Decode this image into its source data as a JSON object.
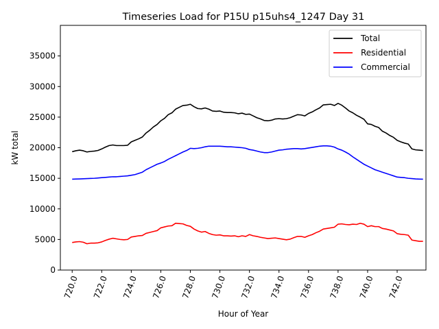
{
  "chart_data": {
    "type": "line",
    "title": "Timeseries Load for P15U p15uhs4_1247  Day 31",
    "xlabel": "Hour of Year",
    "ylabel": "kW total",
    "xlim": [
      719.2,
      743.95
    ],
    "ylim": [
      0,
      40000
    ],
    "x_ticks": [
      720,
      722,
      724,
      726,
      728,
      730,
      732,
      734,
      736,
      738,
      740,
      742
    ],
    "x_tick_labels": [
      "720.0",
      "722.0",
      "724.0",
      "726.0",
      "728.0",
      "730.0",
      "732.0",
      "734.0",
      "736.0",
      "738.0",
      "740.0",
      "742.0"
    ],
    "y_ticks": [
      0,
      5000,
      10000,
      15000,
      20000,
      25000,
      30000,
      35000
    ],
    "y_tick_labels": [
      "0",
      "5000",
      "10000",
      "15000",
      "20000",
      "25000",
      "30000",
      "35000"
    ],
    "legend_position": "top-right",
    "x": [
      720.0,
      720.25,
      720.5,
      720.75,
      721.0,
      721.25,
      721.5,
      721.75,
      722.0,
      722.25,
      722.5,
      722.75,
      723.0,
      723.25,
      723.5,
      723.75,
      724.0,
      724.25,
      724.5,
      724.75,
      725.0,
      725.25,
      725.5,
      725.75,
      726.0,
      726.25,
      726.5,
      726.75,
      727.0,
      727.25,
      727.5,
      727.75,
      728.0,
      728.25,
      728.5,
      728.75,
      729.0,
      729.25,
      729.5,
      729.75,
      730.0,
      730.25,
      730.5,
      730.75,
      731.0,
      731.25,
      731.5,
      731.75,
      732.0,
      732.25,
      732.5,
      732.75,
      733.0,
      733.25,
      733.5,
      733.75,
      734.0,
      734.25,
      734.5,
      734.75,
      735.0,
      735.25,
      735.5,
      735.75,
      736.0,
      736.25,
      736.5,
      736.75,
      737.0,
      737.25,
      737.5,
      737.75,
      738.0,
      738.25,
      738.5,
      738.75,
      739.0,
      739.25,
      739.5,
      739.75,
      740.0,
      740.25,
      740.5,
      740.75,
      741.0,
      741.25,
      741.5,
      741.75,
      742.0,
      742.25,
      742.5,
      742.75,
      743.0,
      743.25,
      743.5,
      743.75
    ],
    "series": [
      {
        "name": "Total",
        "color": "#000000",
        "values": [
          19350,
          19500,
          19600,
          19500,
          19300,
          19400,
          19450,
          19550,
          19800,
          20100,
          20350,
          20450,
          20350,
          20350,
          20350,
          20400,
          20950,
          21200,
          21450,
          21750,
          22400,
          22850,
          23400,
          23800,
          24400,
          24800,
          25400,
          25700,
          26300,
          26600,
          26900,
          26950,
          27100,
          26700,
          26400,
          26350,
          26500,
          26300,
          26000,
          25950,
          26000,
          25800,
          25750,
          25750,
          25700,
          25550,
          25650,
          25450,
          25500,
          25200,
          24900,
          24700,
          24450,
          24400,
          24500,
          24700,
          24750,
          24700,
          24750,
          24900,
          25150,
          25400,
          25350,
          25200,
          25600,
          25850,
          26200,
          26500,
          27000,
          27050,
          27100,
          26900,
          27250,
          26950,
          26500,
          26000,
          25700,
          25300,
          25000,
          24650,
          23900,
          23800,
          23500,
          23300,
          22700,
          22400,
          22000,
          21700,
          21200,
          20950,
          20750,
          20600,
          19800,
          19650,
          19600,
          19550
        ]
      },
      {
        "name": "Residential",
        "color": "#ff0000",
        "values": [
          4500,
          4600,
          4650,
          4550,
          4300,
          4400,
          4400,
          4450,
          4600,
          4850,
          5050,
          5200,
          5100,
          5000,
          4950,
          5000,
          5400,
          5500,
          5600,
          5650,
          6000,
          6150,
          6300,
          6450,
          6900,
          7050,
          7200,
          7250,
          7650,
          7600,
          7550,
          7300,
          7150,
          6700,
          6400,
          6200,
          6300,
          6000,
          5800,
          5700,
          5750,
          5600,
          5600,
          5550,
          5600,
          5450,
          5600,
          5500,
          5800,
          5600,
          5500,
          5350,
          5250,
          5150,
          5200,
          5250,
          5150,
          5050,
          4950,
          5050,
          5300,
          5500,
          5500,
          5350,
          5600,
          5800,
          6100,
          6350,
          6700,
          6800,
          6900,
          7000,
          7500,
          7550,
          7450,
          7400,
          7500,
          7450,
          7650,
          7500,
          7100,
          7250,
          7100,
          7100,
          6800,
          6700,
          6550,
          6400,
          5950,
          5850,
          5800,
          5700,
          4900,
          4800,
          4700,
          4700
        ]
      },
      {
        "name": "Commercial",
        "color": "#0000ff",
        "values": [
          14850,
          14880,
          14900,
          14920,
          14950,
          14980,
          15000,
          15050,
          15100,
          15150,
          15200,
          15250,
          15250,
          15300,
          15350,
          15400,
          15500,
          15600,
          15800,
          16000,
          16400,
          16700,
          17000,
          17300,
          17500,
          17750,
          18100,
          18400,
          18700,
          19000,
          19300,
          19550,
          19900,
          19850,
          19900,
          20000,
          20150,
          20250,
          20250,
          20250,
          20250,
          20200,
          20150,
          20150,
          20100,
          20050,
          20000,
          19900,
          19700,
          19600,
          19450,
          19300,
          19200,
          19200,
          19300,
          19450,
          19600,
          19650,
          19750,
          19800,
          19850,
          19850,
          19800,
          19850,
          19950,
          20050,
          20150,
          20250,
          20300,
          20300,
          20250,
          20100,
          19800,
          19600,
          19300,
          18950,
          18500,
          18100,
          17700,
          17300,
          17000,
          16700,
          16400,
          16200,
          16000,
          15800,
          15600,
          15400,
          15200,
          15150,
          15100,
          15000,
          14950,
          14900,
          14870,
          14850
        ]
      }
    ]
  }
}
